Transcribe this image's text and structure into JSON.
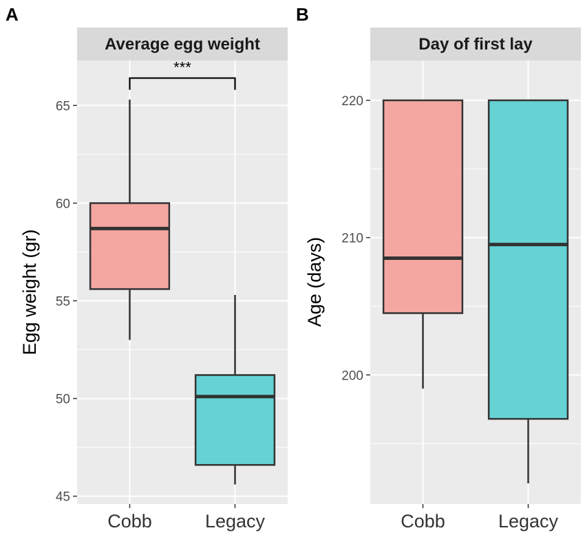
{
  "chart_data": [
    {
      "panel": "A",
      "type": "boxplot",
      "title": "Average egg weight",
      "xlabel": "",
      "ylabel": "Egg weight (gr)",
      "categories": [
        "Cobb",
        "Legacy"
      ],
      "yticks": [
        45,
        50,
        55,
        60,
        65
      ],
      "ylim": [
        44.6,
        67.3
      ],
      "grid": true,
      "colors": [
        "#F4A6A1",
        "#66D2D3"
      ],
      "boxes": [
        {
          "name": "Cobb",
          "whisker_low": 53.0,
          "q1": 55.6,
          "median": 58.7,
          "q3": 60.0,
          "whisker_high": 65.3
        },
        {
          "name": "Legacy",
          "whisker_low": 45.6,
          "q1": 46.6,
          "median": 50.1,
          "q3": 51.2,
          "whisker_high": 55.3
        }
      ],
      "annotation": {
        "text": "***",
        "between": [
          "Cobb",
          "Legacy"
        ],
        "y": 66.4,
        "tip_y": 65.8
      }
    },
    {
      "panel": "B",
      "type": "boxplot",
      "title": "Day of first lay",
      "xlabel": "",
      "ylabel": "Age (days)",
      "categories": [
        "Cobb",
        "Legacy"
      ],
      "yticks": [
        200,
        210,
        220
      ],
      "ylim": [
        190.6,
        222.9
      ],
      "grid": true,
      "colors": [
        "#F4A6A1",
        "#66D2D3"
      ],
      "boxes": [
        {
          "name": "Cobb",
          "whisker_low": 199.0,
          "q1": 204.5,
          "median": 208.5,
          "q3": 220.0,
          "whisker_high": 220.0
        },
        {
          "name": "Legacy",
          "whisker_low": 192.1,
          "q1": 196.8,
          "median": 209.5,
          "q3": 220.0,
          "whisker_high": 220.0
        }
      ]
    }
  ]
}
